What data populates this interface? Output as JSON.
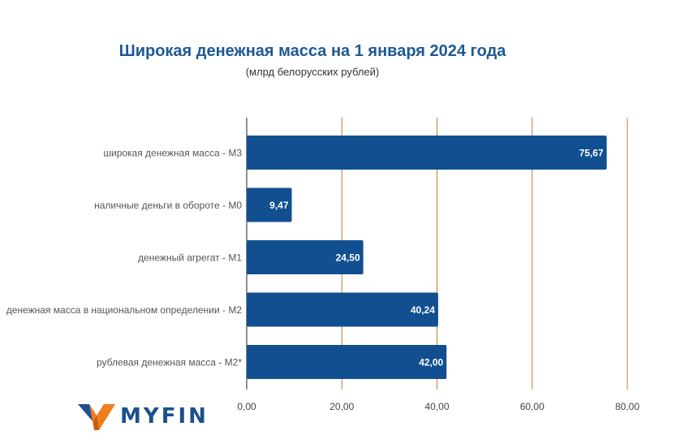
{
  "chart_data": {
    "type": "bar",
    "orientation": "horizontal",
    "title": "Широкая денежная масса на 1 января 2024 года",
    "subtitle": "(млрд белорусских рублей)",
    "categories": [
      "широкая денежная масса - М3",
      "наличные деньги в обороте - М0",
      "денежный агрегат - М1",
      "денежная масса в национальном определении - М2",
      "рублевая денежная масса - М2*"
    ],
    "values": [
      75.67,
      9.47,
      24.5,
      40.24,
      42.0
    ],
    "value_labels": [
      "75,67",
      "9,47",
      "24,50",
      "40,24",
      "42,00"
    ],
    "xlim": [
      0,
      80
    ],
    "xticks": [
      0,
      20,
      40,
      60,
      80
    ],
    "xtick_labels": [
      "0,00",
      "20,00",
      "40,00",
      "60,00",
      "80,00"
    ],
    "xlabel": "",
    "ylabel": "",
    "grid": true,
    "bar_color": "#114f91",
    "grid_color": "#c8772a"
  },
  "logo": {
    "text": "MYFIN"
  },
  "colors": {
    "title": "#1d5a94",
    "logo_blue": "#1d4f8e",
    "logo_orange": "#f07c1b"
  }
}
